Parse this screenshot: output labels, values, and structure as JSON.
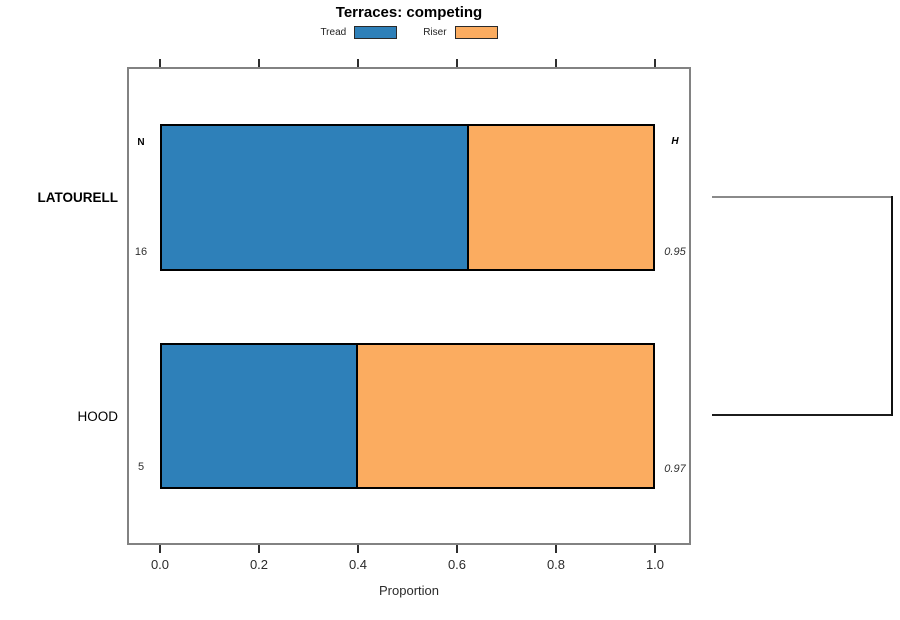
{
  "chart_data": {
    "type": "bar",
    "orientation": "horizontal",
    "stacked": true,
    "title": "Terraces: competing",
    "xlabel": "Proportion",
    "xlim": [
      0,
      1
    ],
    "xticks": [
      0.0,
      0.2,
      0.4,
      0.6,
      0.8,
      1.0
    ],
    "xtick_labels": [
      "0.0",
      "0.2",
      "0.4",
      "0.6",
      "0.8",
      "1.0"
    ],
    "categories": [
      "LATOURELL",
      "HOOD"
    ],
    "series": [
      {
        "name": "Tread",
        "color": "#2E80B9",
        "values": [
          0.625,
          0.4
        ]
      },
      {
        "name": "Riser",
        "color": "#FBAC60",
        "values": [
          0.375,
          0.6
        ]
      }
    ],
    "legend": {
      "position": "top",
      "entries": [
        "Tread",
        "Riser"
      ]
    },
    "columns": {
      "n": {
        "header": "N",
        "values": [
          "16",
          "5"
        ]
      },
      "h": {
        "header": "H",
        "values": [
          "0.95",
          "0.97"
        ]
      }
    },
    "grid": false
  },
  "colors": {
    "tread": "#2E80B9",
    "riser": "#FBAC60",
    "bar_border": "#000000",
    "plot_border": "#828282",
    "dendrogram_top_line": "#8A8A8A",
    "dendrogram_bottom_line": "#1C1C1C",
    "dendrogram_vertical_line": "#111111"
  }
}
